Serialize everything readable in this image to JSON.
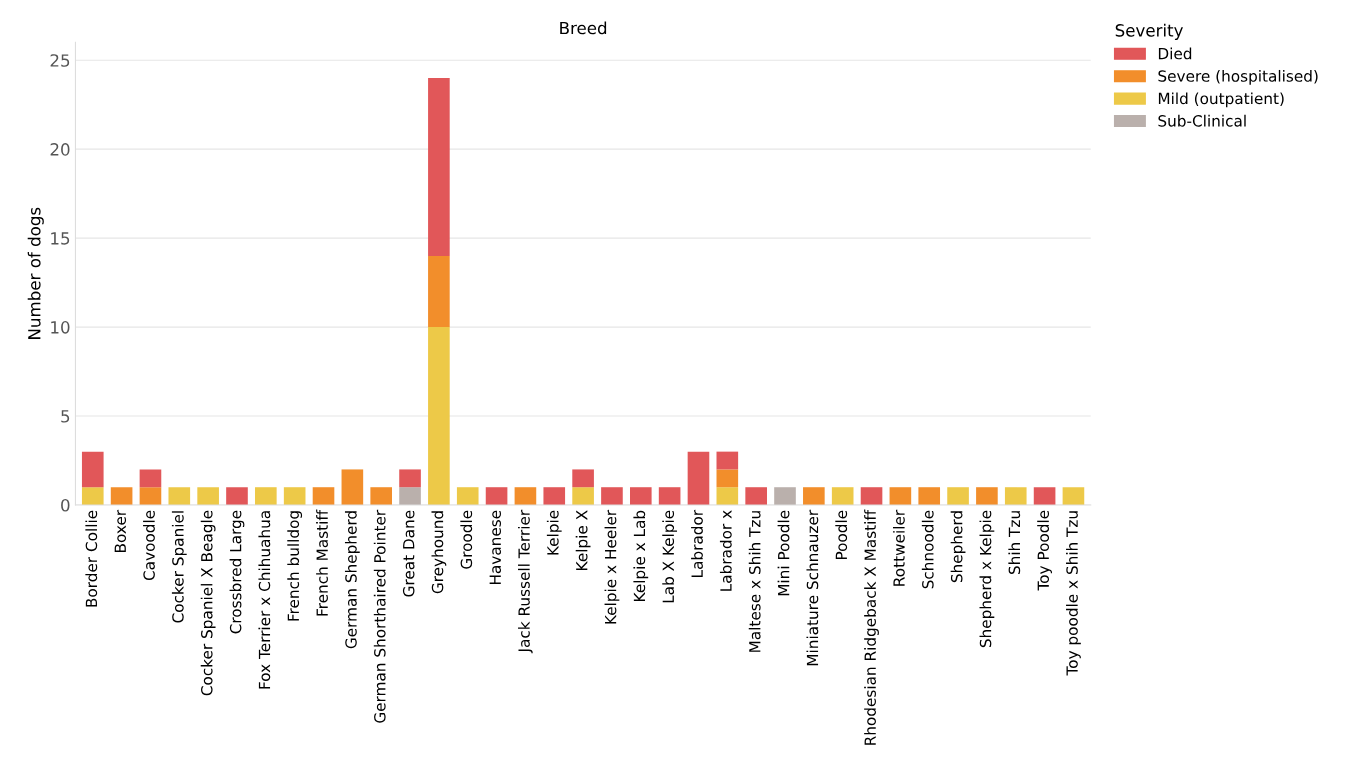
{
  "chart_data": {
    "type": "bar",
    "title": "Breed",
    "ylabel": "Number of dogs",
    "legend_title": "Severity",
    "categories": [
      "Border Collie",
      "Boxer",
      "Cavoodle",
      "Cocker Spaniel",
      "Cocker Spaniel X Beagle",
      "Crossbred Large",
      "Fox Terrier x Chihuahua",
      "French bulldog",
      "French Mastiff",
      "German Shepherd",
      "German Shorthaired Pointer",
      "Great Dane",
      "Greyhound",
      "Groodle",
      "Havanese",
      "Jack Russell Terrier",
      "Kelpie",
      "Kelpie X",
      "Kelpie x Heeler",
      "Kelpie x Lab",
      "Lab X Kelpie",
      "Labrador",
      "Labrador x",
      "Maltese x Shih Tzu",
      "Mini Poodle",
      "Miniature Schnauzer",
      "Poodle",
      "Rhodesian Ridgeback X Mastiff",
      "Rottweiler",
      "Schnoodle",
      "Shepherd",
      "Shepherd x Kelpie",
      "Shih Tzu",
      "Toy Poodle",
      "Toy poodle x Shih Tzu"
    ],
    "stacked": true,
    "series": [
      {
        "name": "Sub-Clinical",
        "color": "#bab0ac",
        "values": [
          null,
          null,
          null,
          null,
          null,
          null,
          null,
          null,
          null,
          null,
          null,
          1,
          null,
          null,
          null,
          null,
          null,
          null,
          null,
          null,
          null,
          null,
          null,
          null,
          1,
          null,
          null,
          null,
          null,
          null,
          null,
          null,
          null,
          null,
          null
        ]
      },
      {
        "name": "Mild (outpatient)",
        "color": "#edc948",
        "values": [
          1,
          null,
          null,
          1,
          1,
          null,
          1,
          1,
          null,
          null,
          null,
          null,
          10,
          1,
          null,
          null,
          null,
          1,
          null,
          null,
          null,
          null,
          1,
          null,
          null,
          null,
          1,
          null,
          null,
          null,
          1,
          null,
          1,
          null,
          1
        ]
      },
      {
        "name": "Severe (hospitalised)",
        "color": "#f28e2b",
        "values": [
          null,
          1,
          1,
          null,
          null,
          null,
          null,
          null,
          1,
          2,
          1,
          null,
          4,
          null,
          null,
          1,
          null,
          null,
          null,
          null,
          null,
          null,
          1,
          null,
          null,
          1,
          null,
          null,
          1,
          1,
          null,
          1,
          null,
          null,
          null
        ]
      },
      {
        "name": "Died",
        "color": "#e15759",
        "values": [
          2,
          null,
          1,
          null,
          null,
          1,
          null,
          null,
          null,
          null,
          null,
          1,
          10,
          null,
          1,
          null,
          1,
          1,
          1,
          1,
          1,
          3,
          1,
          1,
          null,
          null,
          null,
          1,
          null,
          null,
          null,
          null,
          null,
          1,
          null
        ]
      }
    ],
    "ylim": [
      0,
      26
    ],
    "yticks": [
      0,
      5,
      10,
      15,
      20,
      25
    ],
    "grid": "y",
    "legend": "top right",
    "tick_labels": "xy"
  }
}
